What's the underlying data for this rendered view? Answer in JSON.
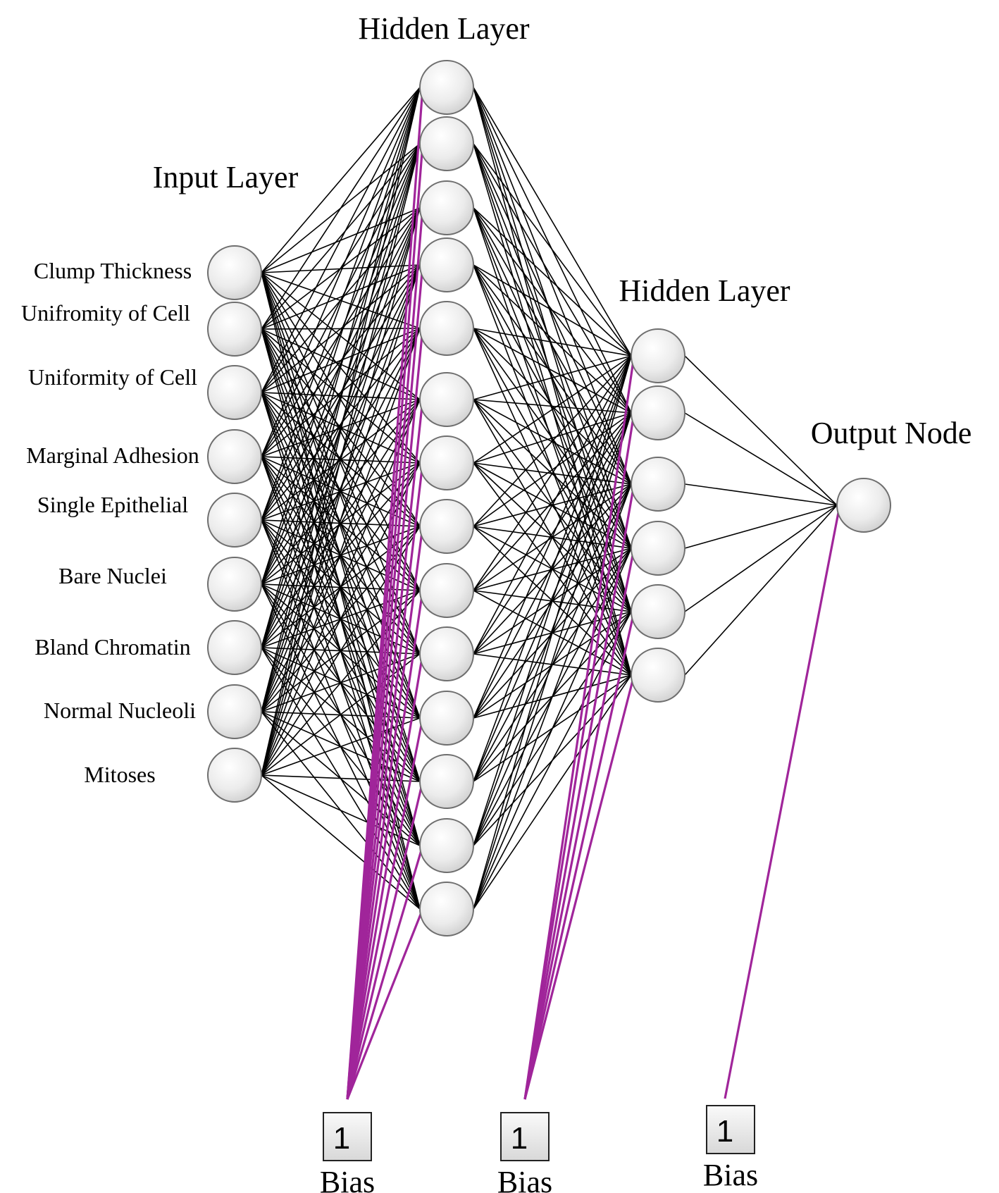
{
  "diagram": {
    "input_title": "Input Layer",
    "hidden1_title": "Hidden Layer",
    "hidden2_title": "Hidden Layer",
    "output_title": "Output Node",
    "input_labels": [
      "Clump Thickness",
      "Unifromity of Cell",
      "Uniformity of Cell",
      "Marginal Adhesion",
      "Single Epithelial",
      "Bare Nuclei",
      "Bland Chromatin",
      "Normal Nucleoli",
      "Mitoses"
    ],
    "bias_units": [
      {
        "value": "1",
        "label": "Bias"
      },
      {
        "value": "1",
        "label": "Bias"
      },
      {
        "value": "1",
        "label": "Bias"
      }
    ],
    "counts": {
      "input": 9,
      "hidden1": 14,
      "hidden2": 6,
      "output": 1
    },
    "colors": {
      "edge": "#000000",
      "bias_edge": "#a0259a",
      "node_fill": "#ededed",
      "node_stroke": "#6e6e6e"
    }
  }
}
